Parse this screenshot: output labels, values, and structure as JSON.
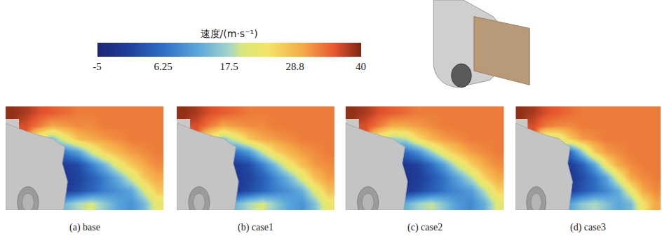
{
  "chart_data": {
    "type": "heatmap",
    "colorbar": {
      "title": "速度/(m·s⁻¹)",
      "range": [
        -5,
        40
      ],
      "ticks": [
        -5,
        6.25,
        17.5,
        {
          "value": 28.75,
          "label": "28.8"
        },
        40
      ]
    },
    "panels": [
      {
        "label": "(a) base",
        "cells": [
          [
            39,
            38,
            36,
            35,
            34,
            33,
            33,
            33,
            33,
            33,
            33,
            33
          ],
          [
            null,
            36,
            33,
            30,
            31,
            32,
            32,
            33,
            33,
            33,
            33,
            33
          ],
          [
            null,
            null,
            20,
            14,
            22,
            28,
            30,
            31,
            32,
            33,
            33,
            33
          ],
          [
            null,
            null,
            null,
            null,
            8,
            12,
            20,
            26,
            29,
            31,
            32,
            33
          ],
          [
            null,
            null,
            null,
            null,
            0,
            2,
            8,
            14,
            22,
            27,
            30,
            32
          ],
          [
            null,
            null,
            null,
            null,
            -1,
            1,
            4,
            8,
            13,
            20,
            27,
            30
          ],
          [
            null,
            null,
            null,
            null,
            0,
            2,
            5,
            8,
            10,
            12,
            20,
            27
          ],
          [
            null,
            null,
            null,
            null,
            14,
            18,
            20,
            16,
            12,
            10,
            14,
            22
          ]
        ]
      },
      {
        "label": "(b) case1",
        "cells": [
          [
            39,
            38,
            36,
            35,
            34,
            33,
            33,
            33,
            33,
            33,
            33,
            33
          ],
          [
            null,
            36,
            33,
            30,
            31,
            32,
            32,
            33,
            33,
            33,
            33,
            33
          ],
          [
            null,
            null,
            22,
            15,
            21,
            27,
            30,
            31,
            32,
            33,
            33,
            33
          ],
          [
            null,
            null,
            null,
            null,
            7,
            11,
            19,
            26,
            29,
            31,
            32,
            33
          ],
          [
            null,
            null,
            null,
            null,
            0,
            2,
            8,
            15,
            23,
            28,
            31,
            32
          ],
          [
            null,
            null,
            null,
            null,
            -1,
            1,
            4,
            9,
            14,
            21,
            28,
            31
          ],
          [
            null,
            null,
            null,
            null,
            0,
            2,
            5,
            8,
            10,
            13,
            21,
            28
          ],
          [
            null,
            null,
            null,
            null,
            14,
            18,
            20,
            16,
            12,
            10,
            15,
            23
          ]
        ]
      },
      {
        "label": "(c) case2",
        "cells": [
          [
            39,
            38,
            36,
            35,
            34,
            33,
            33,
            33,
            33,
            33,
            33,
            33
          ],
          [
            null,
            36,
            33,
            30,
            30,
            31,
            32,
            33,
            33,
            33,
            33,
            33
          ],
          [
            null,
            null,
            21,
            16,
            18,
            25,
            29,
            31,
            32,
            33,
            33,
            33
          ],
          [
            null,
            null,
            null,
            null,
            6,
            10,
            17,
            24,
            28,
            31,
            32,
            33
          ],
          [
            null,
            null,
            null,
            null,
            -1,
            1,
            6,
            12,
            20,
            26,
            30,
            32
          ],
          [
            null,
            null,
            null,
            null,
            -2,
            0,
            3,
            7,
            12,
            18,
            26,
            30
          ],
          [
            null,
            null,
            null,
            null,
            -1,
            1,
            4,
            7,
            9,
            11,
            18,
            26
          ],
          [
            null,
            null,
            null,
            null,
            13,
            17,
            19,
            15,
            11,
            9,
            13,
            21
          ]
        ]
      },
      {
        "label": "(d) case3",
        "cells": [
          [
            39,
            38,
            36,
            35,
            34,
            33,
            33,
            33,
            33,
            33,
            33,
            33
          ],
          [
            null,
            36,
            33,
            32,
            32,
            33,
            33,
            33,
            33,
            33,
            33,
            33
          ],
          [
            null,
            null,
            18,
            20,
            27,
            31,
            32,
            33,
            33,
            33,
            33,
            33
          ],
          [
            null,
            null,
            null,
            null,
            6,
            16,
            27,
            31,
            32,
            33,
            33,
            33
          ],
          [
            null,
            null,
            null,
            null,
            0,
            4,
            12,
            24,
            30,
            32,
            33,
            33
          ],
          [
            null,
            null,
            null,
            null,
            -1,
            2,
            6,
            12,
            22,
            30,
            32,
            33
          ],
          [
            null,
            null,
            null,
            null,
            0,
            3,
            6,
            9,
            13,
            22,
            30,
            32
          ],
          [
            null,
            null,
            null,
            null,
            12,
            16,
            18,
            15,
            12,
            14,
            24,
            30
          ]
        ]
      }
    ]
  }
}
